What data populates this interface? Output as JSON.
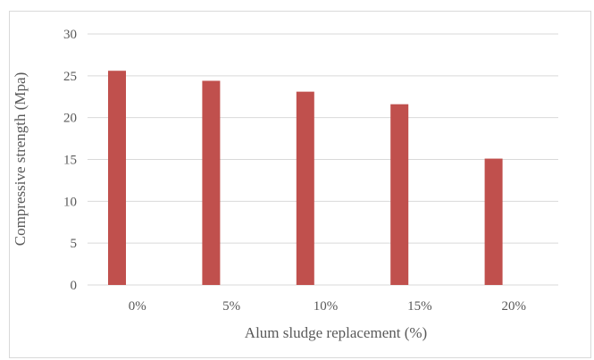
{
  "chart_data": {
    "type": "bar",
    "title": "",
    "xlabel": "Alum sludge replacement (%)",
    "ylabel": "Compressive strength (Mpa)",
    "categories": [
      "0%",
      "5%",
      "10%",
      "15%",
      "20%"
    ],
    "values": [
      25.6,
      24.4,
      23.1,
      21.6,
      15.1
    ],
    "ylim": [
      0,
      30
    ],
    "yticks": [
      0,
      5,
      10,
      15,
      20,
      25,
      30
    ],
    "grid": true,
    "legend": "none",
    "bar_color": "#c0504d",
    "grid_color": "#d9d9d9",
    "text_color": "#595959"
  }
}
